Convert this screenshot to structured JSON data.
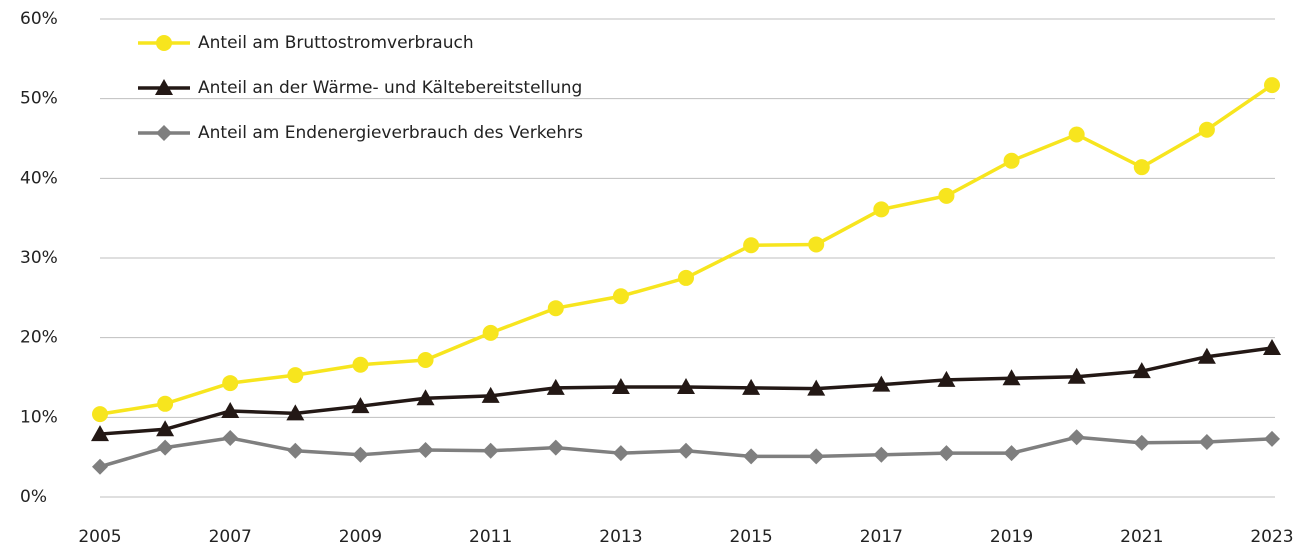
{
  "chart_data": {
    "type": "line",
    "x": [
      2005,
      2006,
      2007,
      2008,
      2009,
      2010,
      2011,
      2012,
      2013,
      2014,
      2015,
      2016,
      2017,
      2018,
      2019,
      2020,
      2021,
      2022,
      2023
    ],
    "series": [
      {
        "name": "Anteil am Bruttostromverbrauch",
        "color": "#f7e51e",
        "marker": "circle",
        "values": [
          10.4,
          11.7,
          14.3,
          15.3,
          16.6,
          17.2,
          20.6,
          23.7,
          25.2,
          27.5,
          31.6,
          31.7,
          36.1,
          37.8,
          42.2,
          45.5,
          41.4,
          46.1,
          51.7
        ]
      },
      {
        "name": "Anteil an der Wärme- und Kältebereitstellung",
        "color": "#231815",
        "marker": "triangle",
        "values": [
          7.9,
          8.5,
          10.8,
          10.5,
          11.4,
          12.4,
          12.7,
          13.7,
          13.8,
          13.8,
          13.7,
          13.6,
          14.1,
          14.7,
          14.9,
          15.1,
          15.8,
          17.6,
          18.7
        ]
      },
      {
        "name": "Anteil am Endenergieverbrauch des Verkehrs",
        "color": "#7f7f7f",
        "marker": "diamond",
        "values": [
          3.8,
          6.2,
          7.4,
          5.8,
          5.3,
          5.9,
          5.8,
          6.2,
          5.5,
          5.8,
          5.1,
          5.1,
          5.3,
          5.5,
          5.5,
          7.5,
          6.8,
          6.9,
          7.3
        ]
      }
    ],
    "xlim": [
      2005,
      2023
    ],
    "xticks": [
      2005,
      2007,
      2009,
      2011,
      2013,
      2015,
      2017,
      2019,
      2021,
      2023
    ],
    "ylim": [
      0,
      60
    ],
    "yticks": [
      {
        "value": 0,
        "label": "0%"
      },
      {
        "value": 10,
        "label": "10%"
      },
      {
        "value": 20,
        "label": "20%"
      },
      {
        "value": 30,
        "label": "30%"
      },
      {
        "value": 40,
        "label": "40%"
      },
      {
        "value": 50,
        "label": "50%"
      },
      {
        "value": 60,
        "label": "60%"
      }
    ],
    "grid": true,
    "legend": "top-left"
  }
}
